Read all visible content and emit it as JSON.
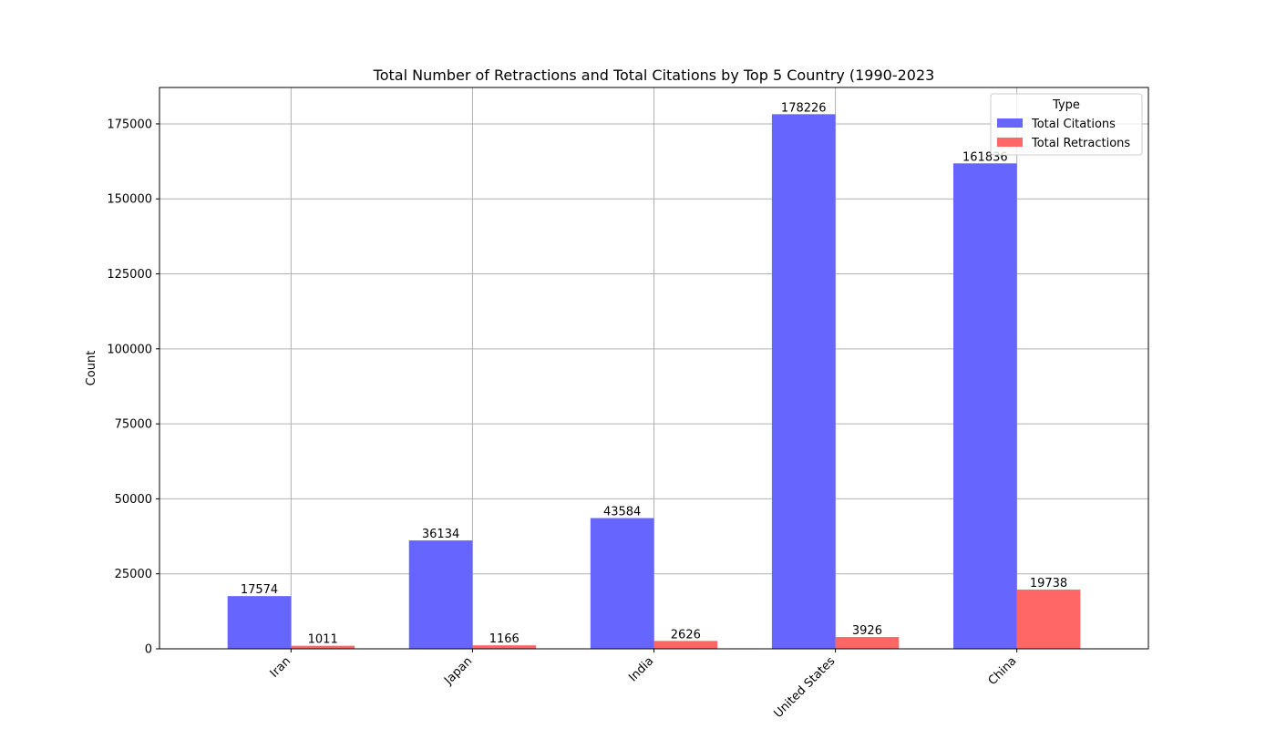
{
  "chart_data": {
    "type": "bar",
    "title": "Total Number of Retractions and Total Citations by Top 5 Country (1990-2023",
    "xlabel": "",
    "ylabel": "Count",
    "categories": [
      "Iran",
      "Japan",
      "India",
      "United States",
      "China"
    ],
    "series": [
      {
        "name": "Total Citations",
        "color": "#6666ff",
        "values": [
          17574,
          36134,
          43584,
          178226,
          161836
        ],
        "labels": [
          "17574",
          "36134",
          "43584",
          "178226",
          "161836"
        ]
      },
      {
        "name": "Total Retractions",
        "color": "#ff6666",
        "values": [
          1011,
          1166,
          2626,
          3926,
          19738
        ],
        "labels": [
          "1011",
          "1166",
          "2626",
          "3926",
          "19738"
        ]
      }
    ],
    "ylim": [
      0,
      187138
    ],
    "yticks": [
      0,
      25000,
      50000,
      75000,
      100000,
      125000,
      150000,
      175000
    ],
    "ytick_labels": [
      "0",
      "25000",
      "50000",
      "75000",
      "100000",
      "125000",
      "150000",
      "175000"
    ],
    "grid": true,
    "legend": {
      "title": "Type",
      "placement": "top-right"
    }
  }
}
